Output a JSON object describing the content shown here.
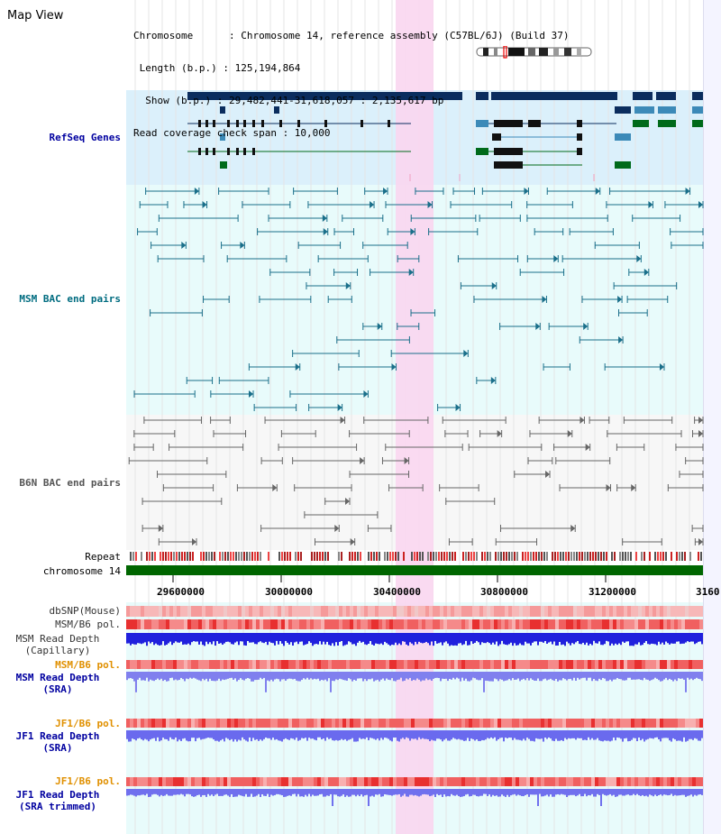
{
  "header": {
    "view_title": "Map View",
    "lines": [
      "Chromosome      : Chromosome 14, reference assembly (C57BL/6J) (Build 37)",
      " Length (b.p.) : 125,194,864",
      "  Show (b.p.) : 29,482,441-31,618,057 : 2,135,617 bp",
      "Read coverage check span : 10,000"
    ]
  },
  "tracks": {
    "refseq": "RefSeq Genes",
    "msm_bac": "MSM BAC end pairs",
    "b6n_bac": "B6N BAC end pairs",
    "repeat": "Repeat",
    "chromosome": "chromosome 14",
    "dbsnp": "dbSNP(Mouse)",
    "msm_pol1": "MSM/B6 pol.",
    "msm_cap": "MSM Read Depth\n(Capillary)",
    "msm_pol2": "MSM/B6 pol.",
    "msm_sra": "MSM Read Depth\n(SRA)",
    "jf1_pol1": "JF1/B6 pol.",
    "jf1_sra": "JF1 Read Depth\n(SRA)",
    "jf1_pol2": "JF1/B6 pol.",
    "jf1_trim": "JF1 Read Depth\n(SRA trimmed)"
  },
  "axis": {
    "ticks": [
      "29600000",
      "30000000",
      "30400000",
      "30800000",
      "31200000",
      "3160"
    ]
  },
  "colors": {
    "refseq_bg": "#dbf0fb",
    "msm_bg": "#e8fbfb",
    "b6n_bg": "#f5f5f5",
    "highlight": "#f9d6f0",
    "chrom_bar": "#006600",
    "label_blue": "#0000a0",
    "label_teal": "#006c80",
    "label_gray": "#555555",
    "label_orange": "#e09000"
  }
}
